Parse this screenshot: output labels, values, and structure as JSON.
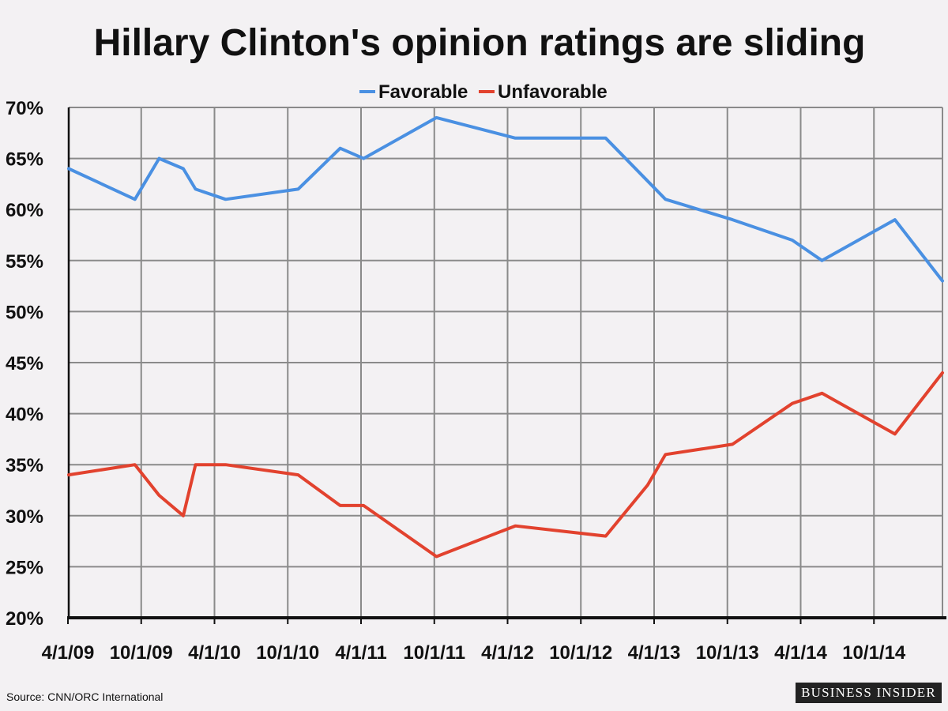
{
  "chart_data": {
    "type": "line",
    "title": "Hillary Clinton's opinion ratings are sliding",
    "x_tick_labels": [
      "4/1/09",
      "10/1/09",
      "4/1/10",
      "10/1/10",
      "4/1/11",
      "10/1/11",
      "4/1/12",
      "10/1/12",
      "4/1/13",
      "10/1/13",
      "4/1/14",
      "10/1/14"
    ],
    "y_tick_labels": [
      "70%",
      "65%",
      "60%",
      "55%",
      "50%",
      "45%",
      "40%",
      "35%",
      "30%",
      "25%",
      "20%"
    ],
    "ylim": [
      20,
      70
    ],
    "y_unit": "%",
    "grid": true,
    "legend_position": "top-center",
    "series": [
      {
        "name": "Favorable",
        "color": "#4a90e2",
        "points": [
          {
            "x": "2009-03-01",
            "y": 64
          },
          {
            "x": "2009-08-15",
            "y": 61
          },
          {
            "x": "2009-10-15",
            "y": 65
          },
          {
            "x": "2009-12-15",
            "y": 64
          },
          {
            "x": "2010-01-15",
            "y": 62
          },
          {
            "x": "2010-04-01",
            "y": 61
          },
          {
            "x": "2010-10-01",
            "y": 62
          },
          {
            "x": "2011-01-15",
            "y": 66
          },
          {
            "x": "2011-03-15",
            "y": 65
          },
          {
            "x": "2011-09-15",
            "y": 69
          },
          {
            "x": "2012-04-01",
            "y": 67
          },
          {
            "x": "2012-11-15",
            "y": 67
          },
          {
            "x": "2013-04-15",
            "y": 61
          },
          {
            "x": "2013-10-01",
            "y": 59
          },
          {
            "x": "2014-03-01",
            "y": 57
          },
          {
            "x": "2014-05-15",
            "y": 55
          },
          {
            "x": "2014-11-15",
            "y": 59
          },
          {
            "x": "2015-03-15",
            "y": 53
          }
        ]
      },
      {
        "name": "Unfavorable",
        "color": "#e2422e",
        "points": [
          {
            "x": "2009-03-01",
            "y": 34
          },
          {
            "x": "2009-08-15",
            "y": 35
          },
          {
            "x": "2009-10-15",
            "y": 32
          },
          {
            "x": "2009-12-15",
            "y": 30
          },
          {
            "x": "2010-01-15",
            "y": 35
          },
          {
            "x": "2010-04-01",
            "y": 35
          },
          {
            "x": "2010-10-01",
            "y": 34
          },
          {
            "x": "2011-01-15",
            "y": 31
          },
          {
            "x": "2011-03-15",
            "y": 31
          },
          {
            "x": "2011-09-15",
            "y": 26
          },
          {
            "x": "2012-04-01",
            "y": 29
          },
          {
            "x": "2012-11-15",
            "y": 28
          },
          {
            "x": "2013-03-01",
            "y": 33
          },
          {
            "x": "2013-04-15",
            "y": 36
          },
          {
            "x": "2013-10-01",
            "y": 37
          },
          {
            "x": "2014-03-01",
            "y": 41
          },
          {
            "x": "2014-05-15",
            "y": 42
          },
          {
            "x": "2014-11-15",
            "y": 38
          },
          {
            "x": "2015-03-15",
            "y": 44
          }
        ]
      }
    ]
  },
  "footer": {
    "source": "Source: CNN/ORC International",
    "brand": "BUSINESS INSIDER"
  }
}
